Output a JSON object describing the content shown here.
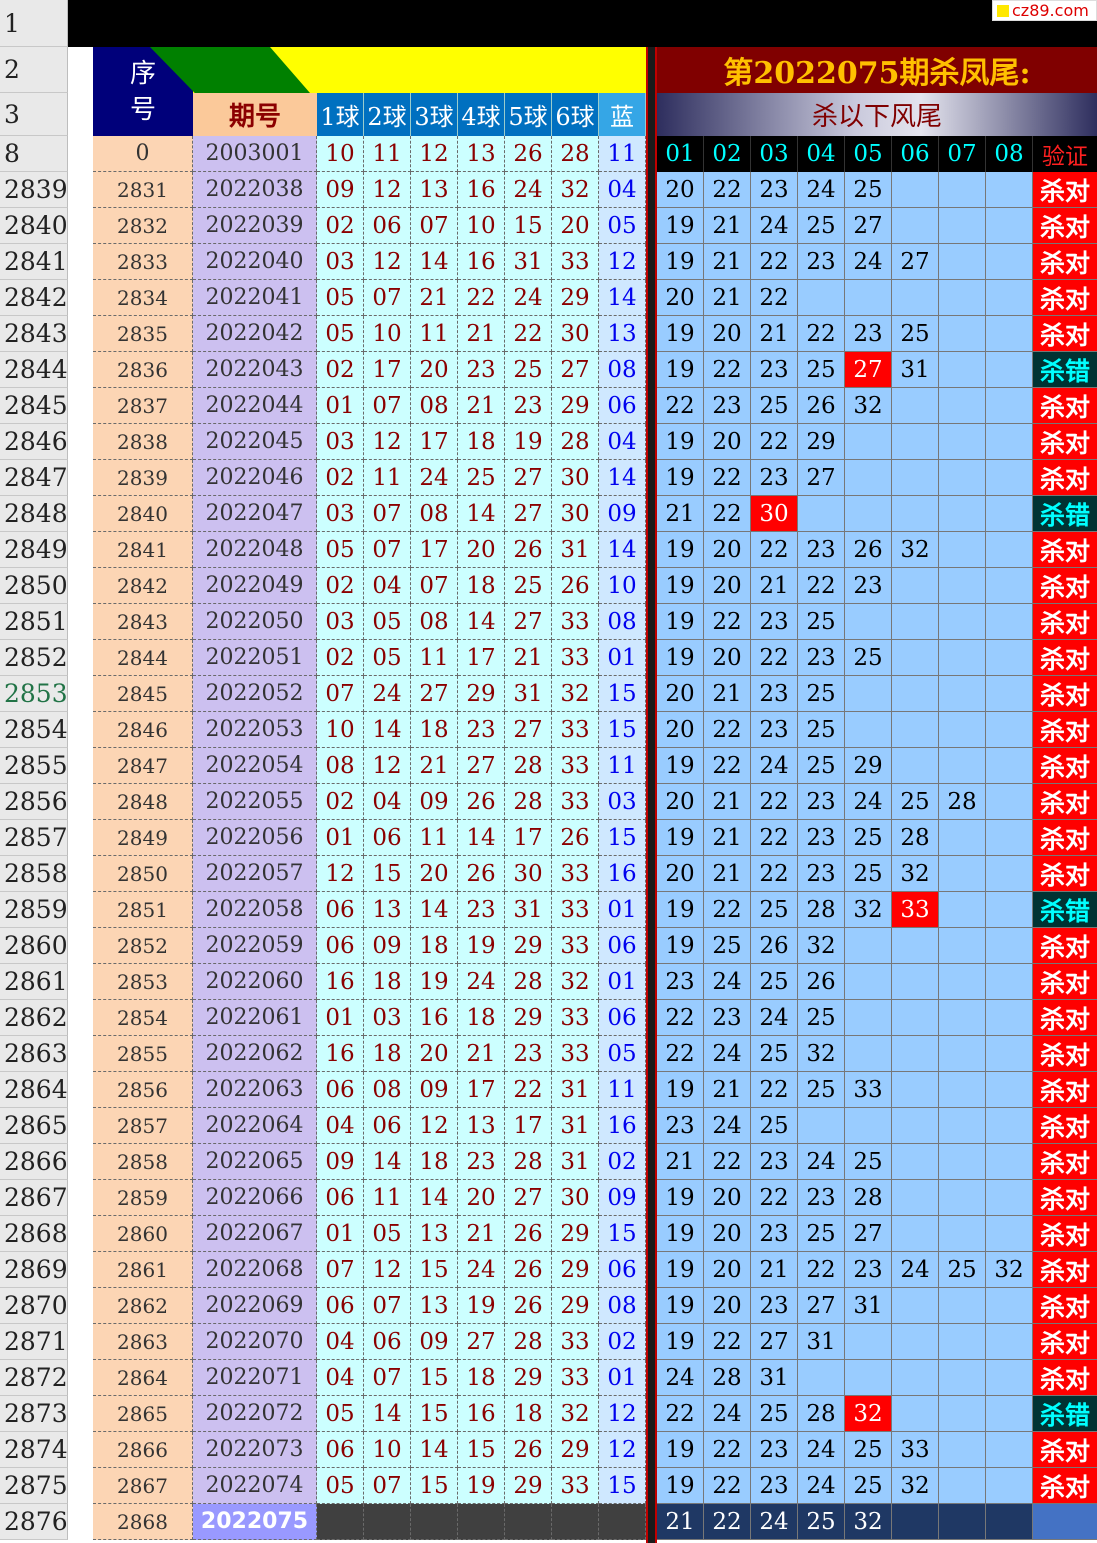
{
  "watermark": "cz89.com",
  "header": {
    "top_row_numbers": [
      "1",
      "2",
      "3",
      "8"
    ],
    "seq_label": [
      "序",
      "号"
    ],
    "period_label": "期号",
    "ball_labels": [
      "1球",
      "2球",
      "3球",
      "4球",
      "5球",
      "6球",
      "蓝"
    ],
    "kill_title": "第2022075期杀凤尾:",
    "kill_subtitle": "杀以下风尾",
    "kill_labels": [
      "01",
      "02",
      "03",
      "04",
      "05",
      "06",
      "07",
      "08"
    ],
    "verify_label": "验证"
  },
  "first_row": {
    "seq": "0",
    "period": "2003001",
    "balls": [
      "10",
      "11",
      "12",
      "13",
      "26",
      "28"
    ],
    "blue": "11"
  },
  "rows": [
    {
      "row": "2839",
      "seq": "2831",
      "period": "2022038",
      "balls": [
        "09",
        "12",
        "13",
        "16",
        "24",
        "32"
      ],
      "blue": "04",
      "kills": [
        "20",
        "22",
        "23",
        "24",
        "25"
      ],
      "verdict": "杀对"
    },
    {
      "row": "2840",
      "seq": "2832",
      "period": "2022039",
      "balls": [
        "02",
        "06",
        "07",
        "10",
        "15",
        "20"
      ],
      "blue": "05",
      "kills": [
        "19",
        "21",
        "24",
        "25",
        "27"
      ],
      "verdict": "杀对"
    },
    {
      "row": "2841",
      "seq": "2833",
      "period": "2022040",
      "balls": [
        "03",
        "12",
        "14",
        "16",
        "31",
        "33"
      ],
      "blue": "12",
      "kills": [
        "19",
        "21",
        "22",
        "23",
        "24",
        "27"
      ],
      "verdict": "杀对"
    },
    {
      "row": "2842",
      "seq": "2834",
      "period": "2022041",
      "balls": [
        "05",
        "07",
        "21",
        "22",
        "24",
        "29"
      ],
      "blue": "14",
      "kills": [
        "20",
        "21",
        "22"
      ],
      "verdict": "杀对"
    },
    {
      "row": "2843",
      "seq": "2835",
      "period": "2022042",
      "balls": [
        "05",
        "10",
        "11",
        "21",
        "22",
        "30"
      ],
      "blue": "13",
      "kills": [
        "19",
        "20",
        "21",
        "22",
        "23",
        "25"
      ],
      "verdict": "杀对"
    },
    {
      "row": "2844",
      "seq": "2836",
      "period": "2022043",
      "balls": [
        "02",
        "17",
        "20",
        "23",
        "25",
        "27"
      ],
      "blue": "08",
      "kills": [
        "19",
        "22",
        "23",
        "25",
        "27",
        "31"
      ],
      "verdict": "杀错"
    },
    {
      "row": "2845",
      "seq": "2837",
      "period": "2022044",
      "balls": [
        "01",
        "07",
        "08",
        "21",
        "23",
        "29"
      ],
      "blue": "06",
      "kills": [
        "22",
        "23",
        "25",
        "26",
        "32"
      ],
      "verdict": "杀对"
    },
    {
      "row": "2846",
      "seq": "2838",
      "period": "2022045",
      "balls": [
        "03",
        "12",
        "17",
        "18",
        "19",
        "28"
      ],
      "blue": "04",
      "kills": [
        "19",
        "20",
        "22",
        "29"
      ],
      "verdict": "杀对"
    },
    {
      "row": "2847",
      "seq": "2839",
      "period": "2022046",
      "balls": [
        "02",
        "11",
        "24",
        "25",
        "27",
        "30"
      ],
      "blue": "14",
      "kills": [
        "19",
        "22",
        "23",
        "27"
      ],
      "verdict": "杀对"
    },
    {
      "row": "2848",
      "seq": "2840",
      "period": "2022047",
      "balls": [
        "03",
        "07",
        "08",
        "14",
        "27",
        "30"
      ],
      "blue": "09",
      "kills": [
        "21",
        "22",
        "30"
      ],
      "verdict": "杀错"
    },
    {
      "row": "2849",
      "seq": "2841",
      "period": "2022048",
      "balls": [
        "05",
        "07",
        "17",
        "20",
        "26",
        "31"
      ],
      "blue": "14",
      "kills": [
        "19",
        "20",
        "22",
        "23",
        "26",
        "32"
      ],
      "verdict": "杀对"
    },
    {
      "row": "2850",
      "seq": "2842",
      "period": "2022049",
      "balls": [
        "02",
        "04",
        "07",
        "18",
        "25",
        "26"
      ],
      "blue": "10",
      "kills": [
        "19",
        "20",
        "21",
        "22",
        "23"
      ],
      "verdict": "杀对"
    },
    {
      "row": "2851",
      "seq": "2843",
      "period": "2022050",
      "balls": [
        "03",
        "05",
        "08",
        "14",
        "27",
        "33"
      ],
      "blue": "08",
      "kills": [
        "19",
        "22",
        "23",
        "25"
      ],
      "verdict": "杀对"
    },
    {
      "row": "2852",
      "seq": "2844",
      "period": "2022051",
      "balls": [
        "02",
        "05",
        "11",
        "17",
        "21",
        "33"
      ],
      "blue": "01",
      "kills": [
        "19",
        "20",
        "22",
        "23",
        "25"
      ],
      "verdict": "杀对"
    },
    {
      "row": "2853",
      "seq": "2845",
      "period": "2022052",
      "balls": [
        "07",
        "24",
        "27",
        "29",
        "31",
        "32"
      ],
      "blue": "15",
      "kills": [
        "20",
        "21",
        "23",
        "25"
      ],
      "verdict": "杀对"
    },
    {
      "row": "2854",
      "seq": "2846",
      "period": "2022053",
      "balls": [
        "10",
        "14",
        "18",
        "23",
        "27",
        "33"
      ],
      "blue": "15",
      "kills": [
        "20",
        "22",
        "23",
        "25"
      ],
      "verdict": "杀对"
    },
    {
      "row": "2855",
      "seq": "2847",
      "period": "2022054",
      "balls": [
        "08",
        "12",
        "21",
        "27",
        "28",
        "33"
      ],
      "blue": "11",
      "kills": [
        "19",
        "22",
        "24",
        "25",
        "29"
      ],
      "verdict": "杀对"
    },
    {
      "row": "2856",
      "seq": "2848",
      "period": "2022055",
      "balls": [
        "02",
        "04",
        "09",
        "26",
        "28",
        "33"
      ],
      "blue": "03",
      "kills": [
        "20",
        "21",
        "22",
        "23",
        "24",
        "25",
        "28"
      ],
      "verdict": "杀对"
    },
    {
      "row": "2857",
      "seq": "2849",
      "period": "2022056",
      "balls": [
        "01",
        "06",
        "11",
        "14",
        "17",
        "26"
      ],
      "blue": "15",
      "kills": [
        "19",
        "21",
        "22",
        "23",
        "25",
        "28"
      ],
      "verdict": "杀对"
    },
    {
      "row": "2858",
      "seq": "2850",
      "period": "2022057",
      "balls": [
        "12",
        "15",
        "20",
        "26",
        "30",
        "33"
      ],
      "blue": "16",
      "kills": [
        "20",
        "21",
        "22",
        "23",
        "25",
        "32"
      ],
      "verdict": "杀对"
    },
    {
      "row": "2859",
      "seq": "2851",
      "period": "2022058",
      "balls": [
        "06",
        "13",
        "14",
        "23",
        "31",
        "33"
      ],
      "blue": "01",
      "kills": [
        "19",
        "22",
        "25",
        "28",
        "32",
        "33"
      ],
      "verdict": "杀错"
    },
    {
      "row": "2860",
      "seq": "2852",
      "period": "2022059",
      "balls": [
        "06",
        "09",
        "18",
        "19",
        "29",
        "33"
      ],
      "blue": "06",
      "kills": [
        "19",
        "25",
        "26",
        "32"
      ],
      "verdict": "杀对"
    },
    {
      "row": "2861",
      "seq": "2853",
      "period": "2022060",
      "balls": [
        "16",
        "18",
        "19",
        "24",
        "28",
        "32"
      ],
      "blue": "01",
      "kills": [
        "23",
        "24",
        "25",
        "26"
      ],
      "verdict": "杀对"
    },
    {
      "row": "2862",
      "seq": "2854",
      "period": "2022061",
      "balls": [
        "01",
        "03",
        "16",
        "18",
        "29",
        "33"
      ],
      "blue": "06",
      "kills": [
        "22",
        "23",
        "24",
        "25"
      ],
      "verdict": "杀对"
    },
    {
      "row": "2863",
      "seq": "2855",
      "period": "2022062",
      "balls": [
        "16",
        "18",
        "20",
        "21",
        "23",
        "33"
      ],
      "blue": "05",
      "kills": [
        "22",
        "24",
        "25",
        "32"
      ],
      "verdict": "杀对"
    },
    {
      "row": "2864",
      "seq": "2856",
      "period": "2022063",
      "balls": [
        "06",
        "08",
        "09",
        "17",
        "22",
        "31"
      ],
      "blue": "11",
      "kills": [
        "19",
        "21",
        "22",
        "25",
        "33"
      ],
      "verdict": "杀对"
    },
    {
      "row": "2865",
      "seq": "2857",
      "period": "2022064",
      "balls": [
        "04",
        "06",
        "12",
        "13",
        "17",
        "31"
      ],
      "blue": "16",
      "kills": [
        "23",
        "24",
        "25"
      ],
      "verdict": "杀对"
    },
    {
      "row": "2866",
      "seq": "2858",
      "period": "2022065",
      "balls": [
        "09",
        "14",
        "18",
        "23",
        "28",
        "31"
      ],
      "blue": "02",
      "kills": [
        "21",
        "22",
        "23",
        "24",
        "25"
      ],
      "verdict": "杀对"
    },
    {
      "row": "2867",
      "seq": "2859",
      "period": "2022066",
      "balls": [
        "06",
        "11",
        "14",
        "20",
        "27",
        "30"
      ],
      "blue": "09",
      "kills": [
        "19",
        "20",
        "22",
        "23",
        "28"
      ],
      "verdict": "杀对"
    },
    {
      "row": "2868",
      "seq": "2860",
      "period": "2022067",
      "balls": [
        "01",
        "05",
        "13",
        "21",
        "26",
        "29"
      ],
      "blue": "15",
      "kills": [
        "19",
        "20",
        "23",
        "25",
        "27"
      ],
      "verdict": "杀对"
    },
    {
      "row": "2869",
      "seq": "2861",
      "period": "2022068",
      "balls": [
        "07",
        "12",
        "15",
        "24",
        "26",
        "29"
      ],
      "blue": "06",
      "kills": [
        "19",
        "20",
        "21",
        "22",
        "23",
        "24",
        "25",
        "32"
      ],
      "verdict": "杀对"
    },
    {
      "row": "2870",
      "seq": "2862",
      "period": "2022069",
      "balls": [
        "06",
        "07",
        "13",
        "19",
        "26",
        "29"
      ],
      "blue": "08",
      "kills": [
        "19",
        "20",
        "23",
        "27",
        "31"
      ],
      "verdict": "杀对"
    },
    {
      "row": "2871",
      "seq": "2863",
      "period": "2022070",
      "balls": [
        "04",
        "06",
        "09",
        "27",
        "28",
        "33"
      ],
      "blue": "02",
      "kills": [
        "19",
        "22",
        "27",
        "31"
      ],
      "verdict": "杀对"
    },
    {
      "row": "2872",
      "seq": "2864",
      "period": "2022071",
      "balls": [
        "04",
        "07",
        "15",
        "18",
        "29",
        "33"
      ],
      "blue": "01",
      "kills": [
        "24",
        "28",
        "31"
      ],
      "verdict": "杀对"
    },
    {
      "row": "2873",
      "seq": "2865",
      "period": "2022072",
      "balls": [
        "05",
        "14",
        "15",
        "16",
        "18",
        "32"
      ],
      "blue": "12",
      "kills": [
        "22",
        "24",
        "25",
        "28",
        "32"
      ],
      "verdict": "杀错"
    },
    {
      "row": "2874",
      "seq": "2866",
      "period": "2022073",
      "balls": [
        "06",
        "10",
        "14",
        "15",
        "26",
        "29"
      ],
      "blue": "12",
      "kills": [
        "19",
        "22",
        "23",
        "24",
        "25",
        "33"
      ],
      "verdict": "杀对"
    },
    {
      "row": "2875",
      "seq": "2867",
      "period": "2022074",
      "balls": [
        "05",
        "07",
        "15",
        "19",
        "29",
        "33"
      ],
      "blue": "15",
      "kills": [
        "19",
        "22",
        "23",
        "24",
        "25",
        "32"
      ],
      "verdict": "杀对"
    },
    {
      "row": "2876",
      "seq": "2868",
      "period": "2022075",
      "kills": [
        "21",
        "22",
        "24",
        "25",
        "32"
      ]
    }
  ]
}
